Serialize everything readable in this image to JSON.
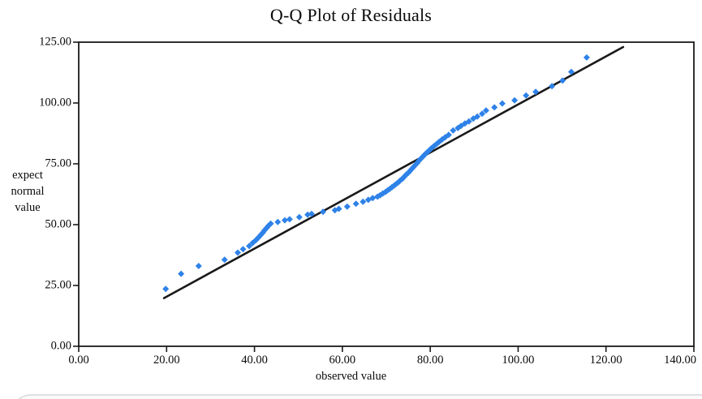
{
  "page": {
    "background": "#ffffff"
  },
  "chart_data": {
    "type": "scatter",
    "title": "Q-Q Plot of Residuals",
    "xlabel": "observed value",
    "ylabel_lines": [
      "expect",
      "normal",
      "value"
    ],
    "xlim": [
      0,
      140
    ],
    "ylim": [
      0,
      125
    ],
    "x_ticks": [
      0,
      20,
      40,
      60,
      80,
      100,
      120,
      140
    ],
    "x_tick_labels": [
      "0.00",
      "20.00",
      "40.00",
      "60.00",
      "80.00",
      "100.00",
      "120.00",
      "140.00"
    ],
    "y_ticks": [
      0,
      25,
      50,
      75,
      100,
      125
    ],
    "y_tick_labels": [
      "0.00",
      "25.00",
      "50.00",
      "75.00",
      "100.00",
      "125.00"
    ],
    "grid": false,
    "legend_position": "none",
    "frame": true,
    "axis_color": "#1a1a1a",
    "reference_line": {
      "name": "normal-fit-line",
      "color": "#1a1a1a",
      "width": 2.6,
      "from": [
        19.4,
        19.8
      ],
      "to": [
        123.9,
        123.0
      ]
    },
    "series": [
      {
        "name": "residuals",
        "marker": "diamond",
        "color": "#2E82E8",
        "marker_size": 8,
        "points": [
          [
            19.8,
            23.6
          ],
          [
            23.3,
            29.8
          ],
          [
            27.3,
            33.0
          ],
          [
            33.2,
            35.6
          ],
          [
            36.2,
            38.5
          ],
          [
            37.4,
            39.9
          ],
          [
            38.8,
            41.2
          ],
          [
            39.6,
            42.5
          ],
          [
            40.3,
            43.6
          ],
          [
            40.9,
            44.7
          ],
          [
            41.4,
            45.7
          ],
          [
            41.9,
            46.7
          ],
          [
            42.3,
            47.7
          ],
          [
            42.8,
            48.7
          ],
          [
            43.2,
            49.6
          ],
          [
            43.7,
            50.4
          ],
          [
            45.3,
            51.1
          ],
          [
            46.9,
            51.8
          ],
          [
            48.0,
            52.2
          ],
          [
            50.2,
            53.1
          ],
          [
            52.1,
            54.1
          ],
          [
            53.0,
            54.4
          ],
          [
            55.6,
            55.3
          ],
          [
            58.3,
            55.9
          ],
          [
            59.2,
            56.5
          ],
          [
            61.1,
            57.4
          ],
          [
            63.1,
            58.6
          ],
          [
            64.7,
            59.4
          ],
          [
            65.9,
            60.2
          ],
          [
            66.9,
            60.9
          ],
          [
            68.0,
            61.5
          ],
          [
            68.6,
            62.1
          ],
          [
            69.2,
            62.8
          ],
          [
            69.8,
            63.4
          ],
          [
            70.3,
            64.1
          ],
          [
            70.8,
            64.7
          ],
          [
            71.3,
            65.4
          ],
          [
            71.8,
            66.1
          ],
          [
            72.3,
            66.8
          ],
          [
            72.8,
            67.5
          ],
          [
            73.2,
            68.2
          ],
          [
            73.7,
            68.9
          ],
          [
            74.1,
            69.7
          ],
          [
            74.5,
            70.5
          ],
          [
            75.0,
            71.3
          ],
          [
            75.4,
            72.1
          ],
          [
            75.8,
            72.9
          ],
          [
            76.2,
            73.7
          ],
          [
            76.6,
            74.5
          ],
          [
            77.0,
            75.3
          ],
          [
            77.4,
            76.2
          ],
          [
            77.8,
            77.0
          ],
          [
            78.3,
            77.9
          ],
          [
            78.7,
            78.7
          ],
          [
            79.2,
            79.6
          ],
          [
            79.7,
            80.4
          ],
          [
            80.2,
            81.3
          ],
          [
            80.8,
            82.2
          ],
          [
            81.4,
            83.1
          ],
          [
            82.0,
            84.0
          ],
          [
            82.7,
            85.0
          ],
          [
            83.4,
            85.9
          ],
          [
            84.2,
            86.9
          ],
          [
            85.2,
            88.7
          ],
          [
            86.3,
            89.7
          ],
          [
            87.0,
            90.6
          ],
          [
            87.9,
            91.6
          ],
          [
            88.8,
            92.4
          ],
          [
            89.8,
            93.6
          ],
          [
            90.7,
            94.4
          ],
          [
            91.8,
            95.6
          ],
          [
            92.7,
            96.9
          ],
          [
            94.6,
            98.2
          ],
          [
            96.4,
            99.8
          ],
          [
            99.2,
            101.1
          ],
          [
            101.8,
            103.1
          ],
          [
            104.0,
            104.6
          ],
          [
            107.7,
            106.9
          ],
          [
            110.1,
            109.2
          ],
          [
            112.1,
            112.8
          ],
          [
            115.6,
            118.7
          ]
        ]
      }
    ]
  }
}
